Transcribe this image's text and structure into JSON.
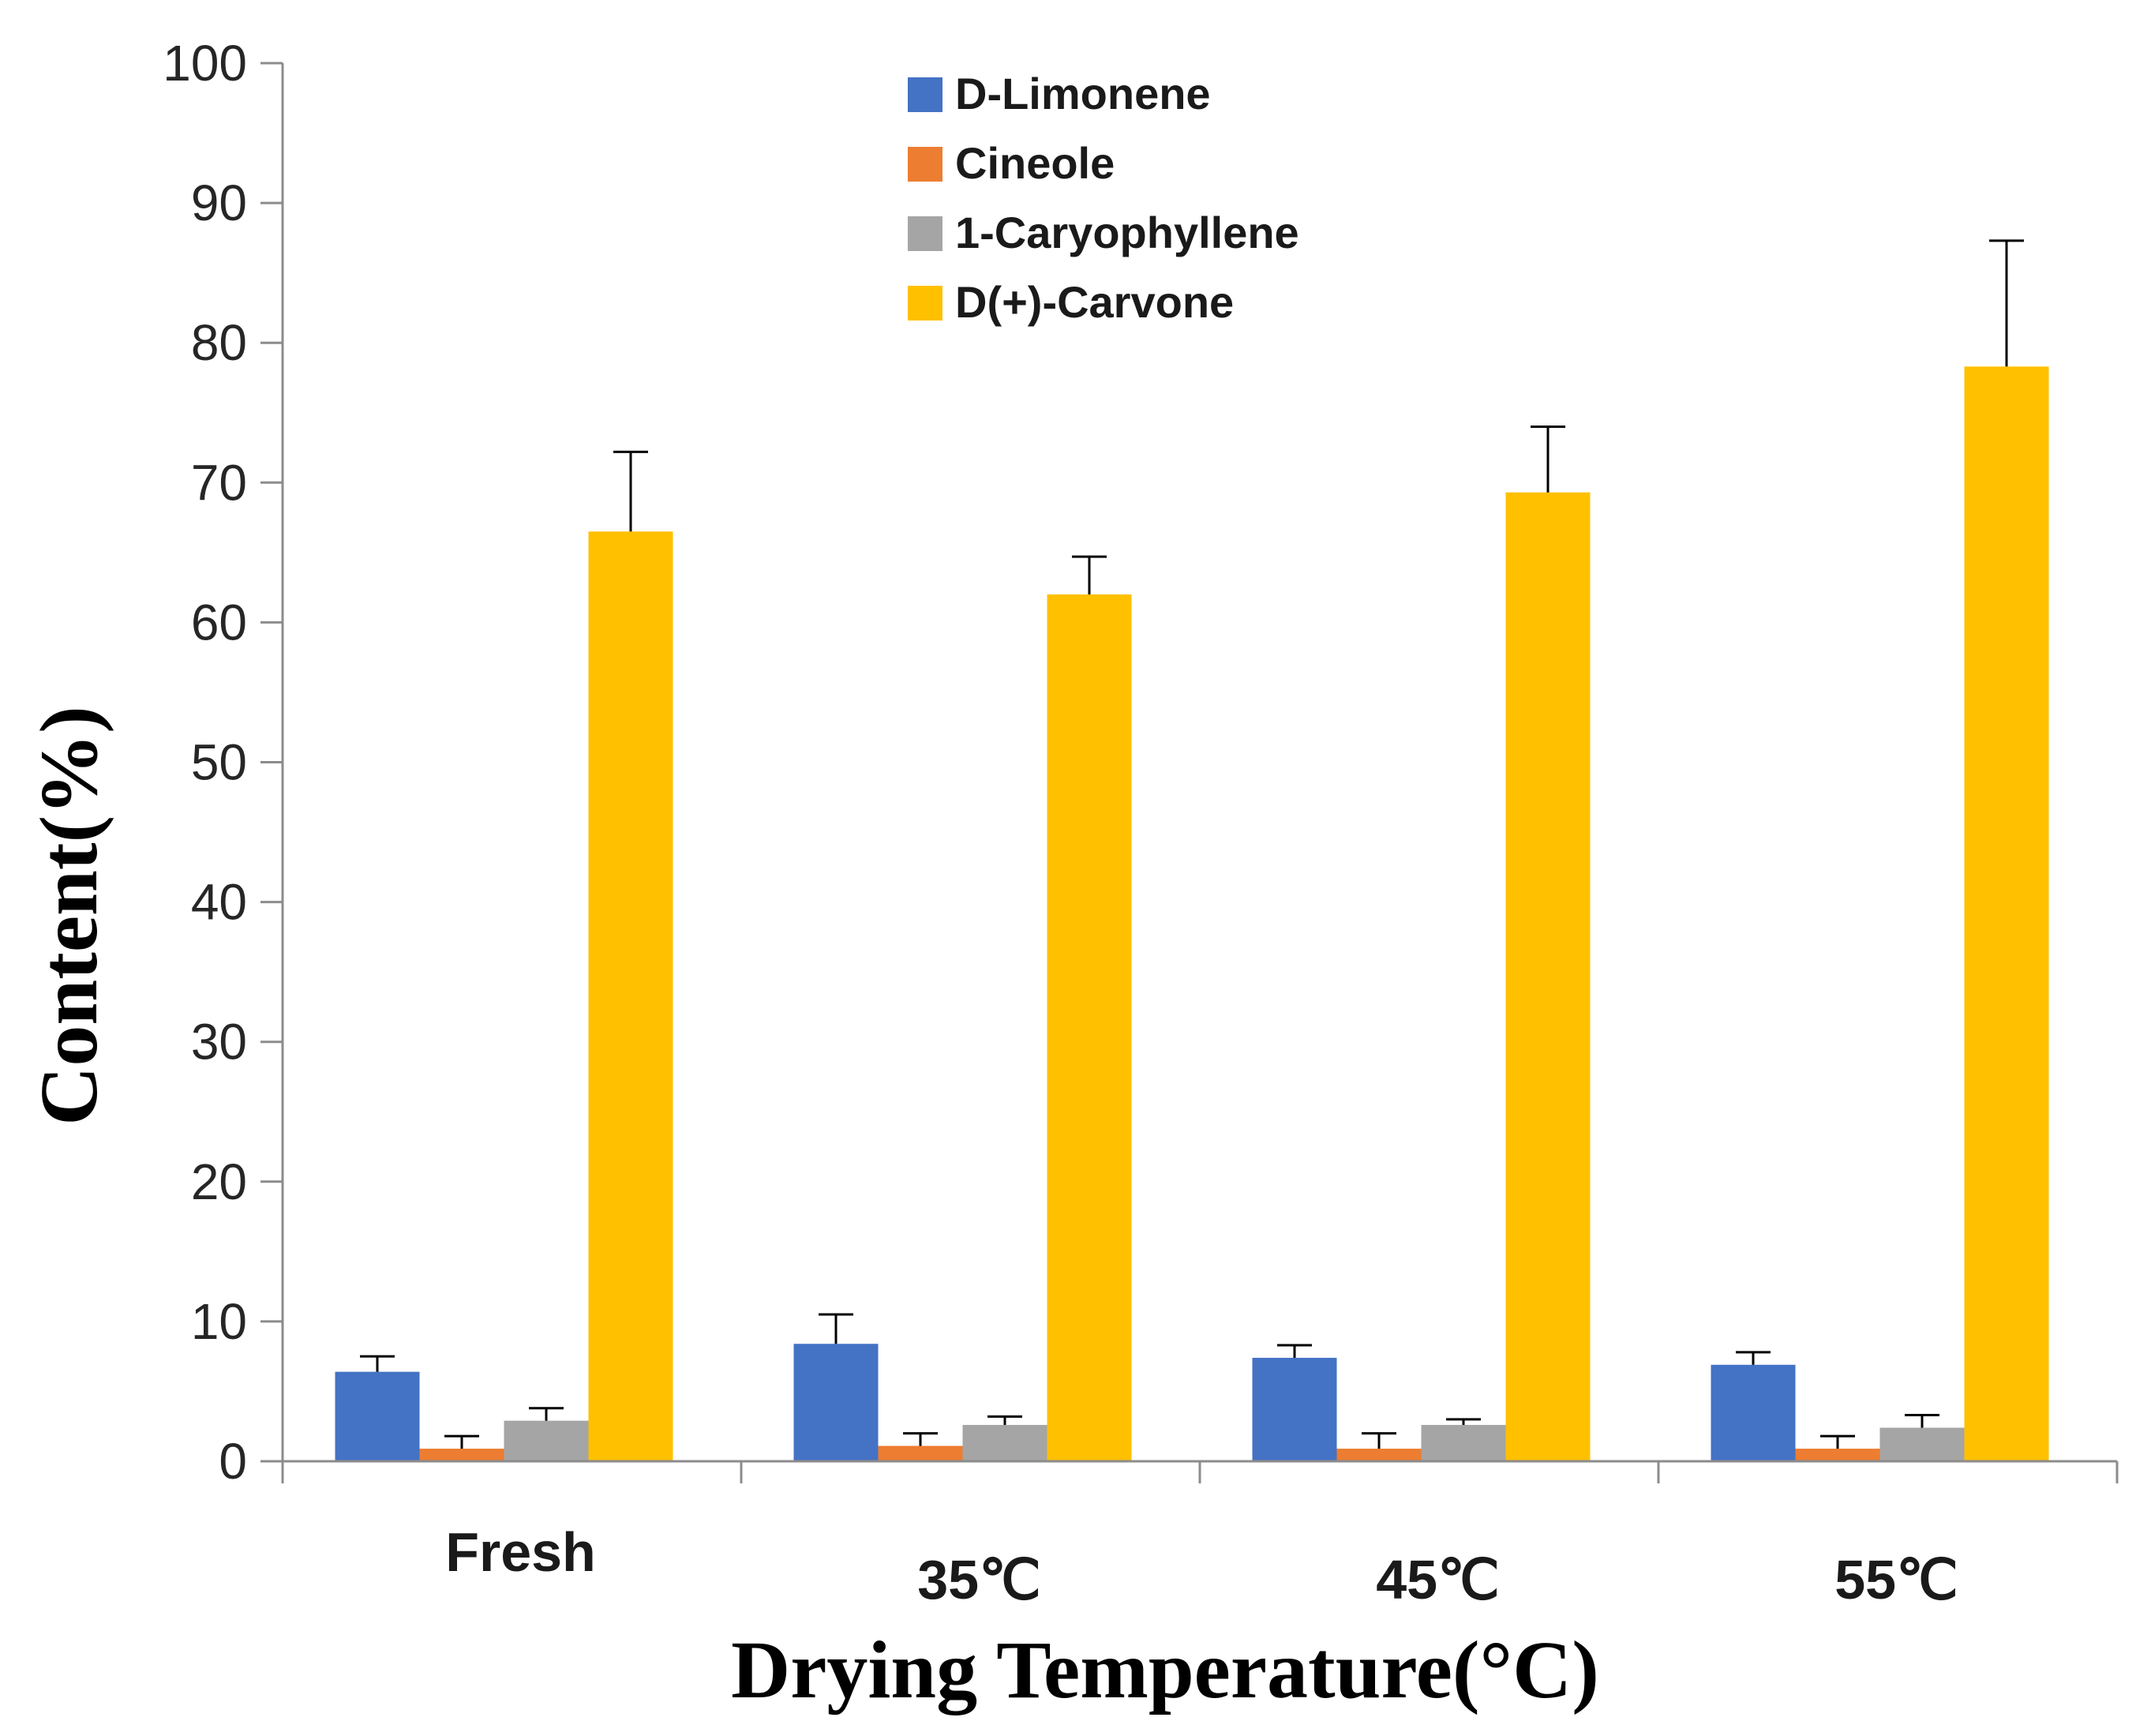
{
  "chart_data": {
    "type": "bar",
    "categories": [
      "Fresh",
      "35℃",
      "45℃",
      "55℃"
    ],
    "series": [
      {
        "name": "D-Limonene",
        "color": "#4472C4",
        "values": [
          6.4,
          8.4,
          7.4,
          6.9
        ],
        "errors": [
          1.1,
          2.1,
          0.9,
          0.9
        ]
      },
      {
        "name": "Cineole",
        "color": "#ED7D31",
        "values": [
          0.9,
          1.1,
          0.9,
          0.9
        ],
        "errors": [
          0.9,
          0.9,
          1.1,
          0.9
        ]
      },
      {
        "name": "1-Caryophyllene",
        "color": "#A5A5A5",
        "values": [
          2.9,
          2.6,
          2.6,
          2.4
        ],
        "errors": [
          0.9,
          0.6,
          0.4,
          0.9
        ]
      },
      {
        "name": "D(+)-Carvone",
        "color": "#FFC000",
        "values": [
          66.5,
          62.0,
          69.3,
          78.3
        ],
        "errors": [
          5.7,
          2.7,
          4.7,
          9.0
        ]
      }
    ],
    "xlabel": "Drying Temperature(°C)",
    "ylabel": "Content(%)",
    "ylim": [
      0,
      100
    ],
    "yticks": [
      "0",
      "10",
      "20",
      "30",
      "40",
      "50",
      "60",
      "70",
      "80",
      "90",
      "100"
    ],
    "legend_position": "top-center",
    "grid": false
  }
}
